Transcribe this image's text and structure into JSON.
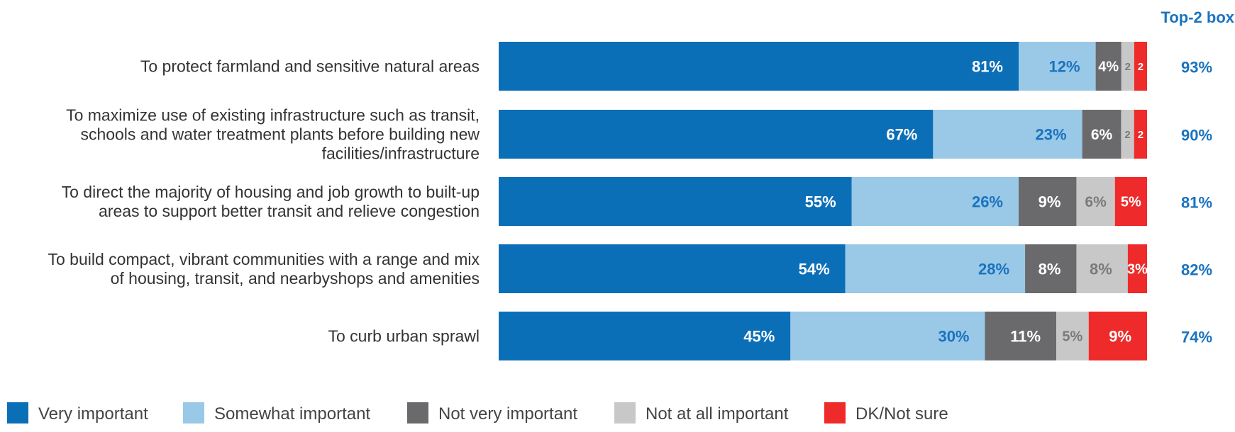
{
  "chart_data": {
    "type": "bar",
    "orientation": "horizontal",
    "stacked": true,
    "value_unit": "%",
    "top2_header": "Top-2 box",
    "categories": [
      [
        "To protect farmland and sensitive natural areas"
      ],
      [
        "To maximize use of existing infrastructure such as transit,",
        "schools and water treatment plants before building new",
        "facilities/infrastructure"
      ],
      [
        "To direct the majority of housing and job growth to built-up",
        "areas to support better transit and relieve congestion"
      ],
      [
        "To build compact, vibrant communities with a range and mix",
        "of housing, transit, and nearbyshops and amenities"
      ],
      [
        "To curb urban sprawl"
      ]
    ],
    "series": [
      {
        "name": "Very important",
        "color": "#0b6fb8",
        "label_color": "#ffffff",
        "values": [
          81,
          67,
          55,
          54,
          45
        ],
        "labels": [
          "81%",
          "67%",
          "55%",
          "54%",
          "45%"
        ]
      },
      {
        "name": "Somewhat important",
        "color": "#9ac8e7",
        "label_color": "#1a73bf",
        "values": [
          12,
          23,
          26,
          28,
          30
        ],
        "labels": [
          "12%",
          "23%",
          "26%",
          "28%",
          "30%"
        ]
      },
      {
        "name": "Not very important",
        "color": "#6a6a6c",
        "label_color": "#ffffff",
        "values": [
          4,
          6,
          9,
          8,
          11
        ],
        "labels": [
          "4%",
          "6%",
          "9%",
          "8%",
          "11%"
        ]
      },
      {
        "name": "Not at all important",
        "color": "#c8c8c9",
        "label_color": "#7a7a7a",
        "values": [
          2,
          2,
          6,
          8,
          5
        ],
        "labels": [
          "2",
          "2",
          "6%",
          "8%",
          "5%"
        ]
      },
      {
        "name": "DK/Not sure",
        "color": "#ee2a2a",
        "label_color": "#ffffff",
        "values": [
          2,
          2,
          5,
          3,
          9
        ],
        "labels": [
          "2",
          "2",
          "5%",
          "3%",
          "9%"
        ]
      }
    ],
    "top2": [
      "93%",
      "90%",
      "81%",
      "82%",
      "74%"
    ],
    "top2_color": "#1a73bf",
    "legend_position": "bottom"
  }
}
